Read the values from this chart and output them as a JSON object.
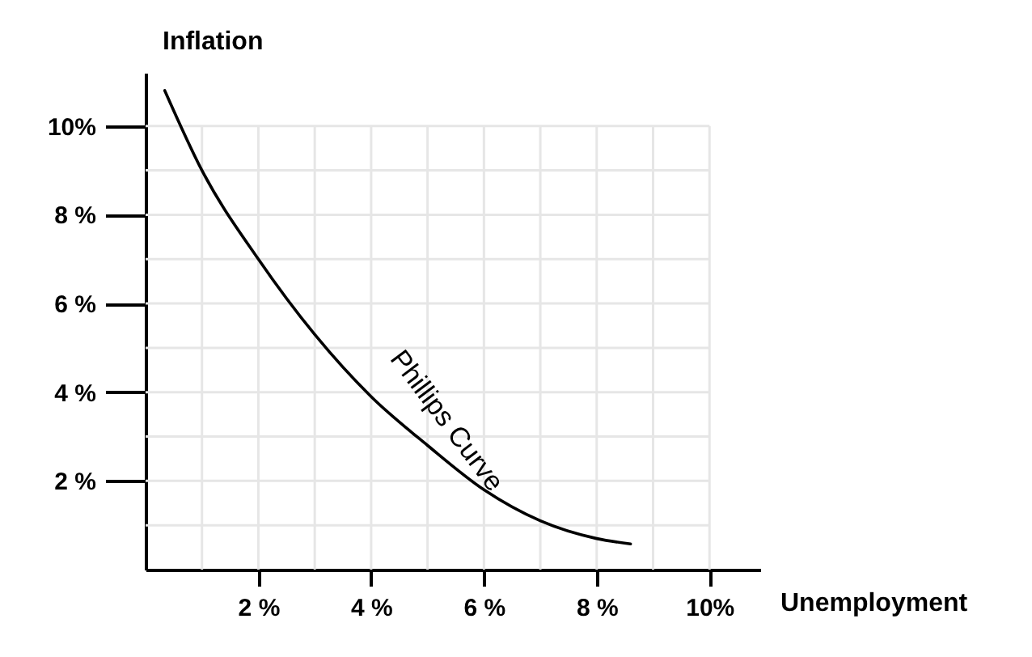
{
  "chart_data": {
    "type": "line",
    "xlabel": "Unemployment",
    "ylabel": "Inflation",
    "x": [
      0.34,
      1,
      2,
      3,
      4,
      5,
      6,
      7,
      8,
      8.6
    ],
    "series": [
      {
        "name": "Phillips Curve",
        "color": "#000000",
        "values": [
          10.8,
          9.0,
          7.0,
          5.3,
          3.9,
          2.8,
          1.8,
          1.1,
          0.7,
          0.58
        ]
      }
    ],
    "xlim": [
      0,
      10.9
    ],
    "ylim": [
      0,
      11.2
    ],
    "xticks": [
      {
        "value": 1,
        "label": null
      },
      {
        "value": 2,
        "label": "2 %"
      },
      {
        "value": 3,
        "label": null
      },
      {
        "value": 4,
        "label": "4 %"
      },
      {
        "value": 5,
        "label": null
      },
      {
        "value": 6,
        "label": "6 %"
      },
      {
        "value": 7,
        "label": null
      },
      {
        "value": 8,
        "label": "8 %"
      },
      {
        "value": 9,
        "label": null
      },
      {
        "value": 10,
        "label": "10%"
      }
    ],
    "yticks": [
      {
        "value": 1,
        "label": null
      },
      {
        "value": 2,
        "label": "2 %"
      },
      {
        "value": 3,
        "label": null
      },
      {
        "value": 4,
        "label": "4 %"
      },
      {
        "value": 5,
        "label": null
      },
      {
        "value": 6,
        "label": "6 %"
      },
      {
        "value": 7,
        "label": null
      },
      {
        "value": 8,
        "label": "8 %"
      },
      {
        "value": 9,
        "label": null
      },
      {
        "value": 10,
        "label": "10%"
      }
    ],
    "grid": true,
    "marker": "none",
    "line_style": "solid"
  }
}
